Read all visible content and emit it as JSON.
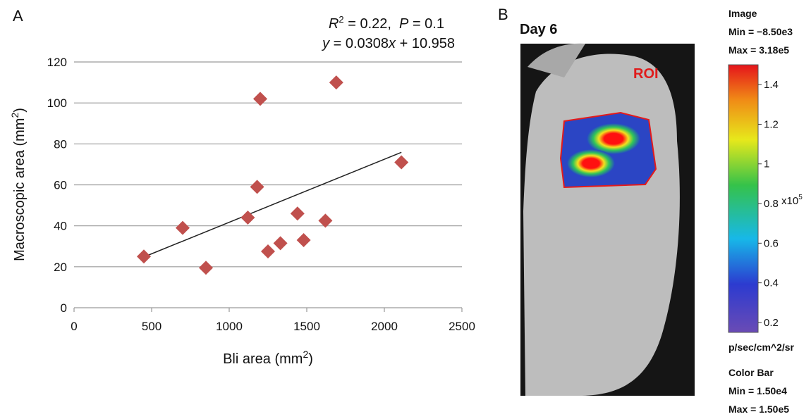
{
  "panel_labels": [
    "A",
    "B"
  ],
  "chart_data": {
    "type": "scatter",
    "annotation": {
      "r2": [
        "R",
        "2",
        " = 0.22,  ",
        "P",
        " = 0.1"
      ],
      "equation": [
        "y",
        " = 0.0308",
        "x",
        " + 10.958"
      ]
    },
    "x_label": [
      "Bli area (mm",
      "2",
      ")"
    ],
    "y_label": [
      "Macroscopic area (mm",
      "2",
      ")"
    ],
    "series": [
      {
        "color": "#c0504d",
        "x": [
          450,
          700,
          850,
          1120,
          1180,
          1200,
          1250,
          1330,
          1440,
          1480,
          1620,
          1690,
          2110
        ],
        "y": [
          25,
          39,
          19.5,
          44,
          59,
          102,
          27.5,
          31.5,
          46,
          33,
          42.5,
          110,
          71
        ]
      }
    ],
    "trendline": {
      "color": "#222222",
      "x": [
        450,
        2110
      ],
      "y": [
        24.8,
        75.9
      ]
    },
    "xlim": [
      0,
      2500
    ],
    "xticks": [
      0,
      500,
      1000,
      1500,
      2000,
      2500
    ],
    "ylim": [
      0,
      120
    ],
    "yticks": [
      0,
      20,
      40,
      60,
      80,
      100,
      120
    ],
    "grid": true
  },
  "image_panel": {
    "title": "Day 6",
    "roi_label": "ROI",
    "image_info": [
      "Image",
      "Min = −8.50e3",
      "Max = 3.18e5"
    ],
    "colorbar": {
      "ylim": [
        0.15,
        1.5
      ],
      "yticks": [
        0.2,
        0.4,
        0.6,
        0.8,
        1.0,
        1.2,
        1.4
      ],
      "multiplier": [
        "x10",
        "5"
      ],
      "unit": "p/sec/cm^2/sr"
    },
    "colorbar_info": [
      "Color Bar",
      "Min = 1.50e4",
      "Max = 1.50e5"
    ]
  }
}
